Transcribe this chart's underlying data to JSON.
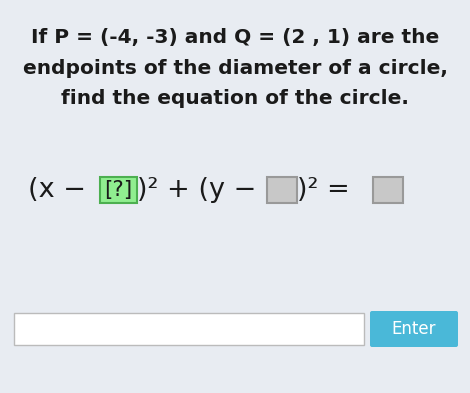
{
  "background_color": "#e8ecf2",
  "title_line1": "If P = (-4, -3) and Q = (2 , 1) are the",
  "title_line2": "endpoints of the diameter of a circle,",
  "title_line3": "find the equation of the circle.",
  "box1_bg": "#90ee90",
  "box1_border": "#4caf50",
  "box2_bg": "#c8c8c8",
  "box2_border": "#999999",
  "box3_bg": "#c8c8c8",
  "box3_border": "#999999",
  "input_box_color": "#ffffff",
  "input_box_border": "#bbbbbb",
  "enter_button_color": "#4ab8d8",
  "enter_button_text": "Enter",
  "enter_button_text_color": "#ffffff",
  "text_color": "#1a1a1a",
  "title_fontsize": 14.5,
  "eq_fontsize": 19.5
}
